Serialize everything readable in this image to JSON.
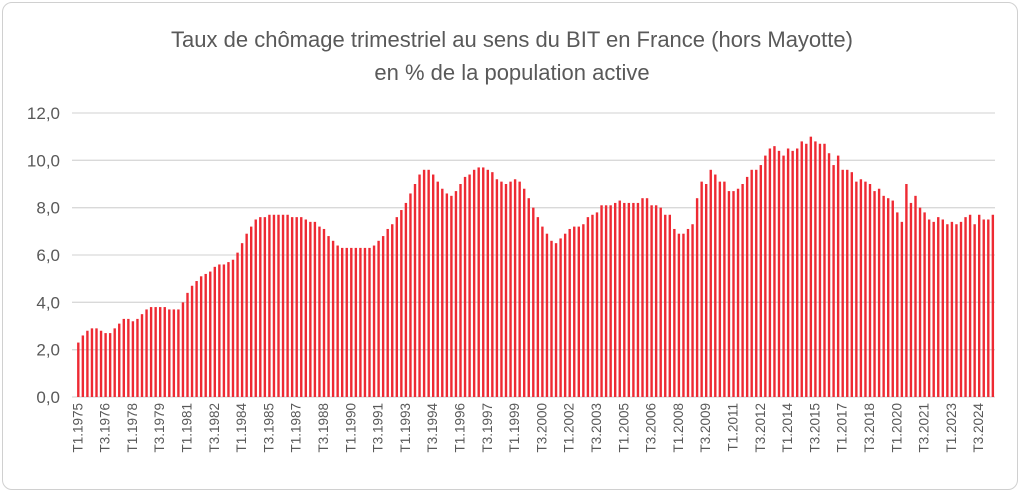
{
  "chart_data": {
    "type": "bar",
    "title": "Taux de chômage trimestriel au sens du BIT en France (hors Mayotte)",
    "subtitle": "en % de la population active",
    "xlabel": "",
    "ylabel": "",
    "ylim": [
      0,
      12
    ],
    "grid": true,
    "y_tick_labels": [
      "0,0",
      "2,0",
      "4,0",
      "6,0",
      "8,0",
      "10,0",
      "12,0"
    ],
    "x_tick_labels": [
      "T1.1975",
      "T3.1976",
      "T1.1978",
      "T3.1979",
      "T1.1981",
      "T3.1982",
      "T1.1984",
      "T3.1985",
      "T1.1987",
      "T3.1988",
      "T1.1990",
      "T3.1991",
      "T1.1993",
      "T3.1994",
      "T1.1996",
      "T3.1997",
      "T1.1999",
      "T3.2000",
      "T1.2002",
      "T3.2003",
      "T1.2005",
      "T3.2006",
      "T1.2008",
      "T3.2009",
      "T1.2011",
      "T3.2012",
      "T1.2014",
      "T3.2015",
      "T1.2017",
      "T3.2018",
      "T1.2020",
      "T3.2021",
      "T1.2023",
      "T3.2024"
    ],
    "bar_color": "#ee2a33",
    "values": [
      2.3,
      2.6,
      2.8,
      2.9,
      2.9,
      2.8,
      2.7,
      2.7,
      2.9,
      3.1,
      3.3,
      3.3,
      3.2,
      3.3,
      3.5,
      3.7,
      3.8,
      3.8,
      3.8,
      3.8,
      3.7,
      3.7,
      3.7,
      4.0,
      4.4,
      4.7,
      4.9,
      5.1,
      5.2,
      5.3,
      5.5,
      5.6,
      5.6,
      5.7,
      5.8,
      6.1,
      6.5,
      6.9,
      7.2,
      7.5,
      7.6,
      7.6,
      7.7,
      7.7,
      7.7,
      7.7,
      7.7,
      7.6,
      7.6,
      7.6,
      7.5,
      7.4,
      7.4,
      7.2,
      7.1,
      6.8,
      6.6,
      6.4,
      6.3,
      6.3,
      6.3,
      6.3,
      6.3,
      6.3,
      6.3,
      6.4,
      6.6,
      6.8,
      7.1,
      7.3,
      7.6,
      7.9,
      8.2,
      8.6,
      9.0,
      9.4,
      9.6,
      9.6,
      9.4,
      9.1,
      8.8,
      8.6,
      8.5,
      8.7,
      9.0,
      9.3,
      9.4,
      9.6,
      9.7,
      9.7,
      9.6,
      9.5,
      9.2,
      9.1,
      9.0,
      9.1,
      9.2,
      9.1,
      8.8,
      8.4,
      8.0,
      7.6,
      7.2,
      6.9,
      6.6,
      6.5,
      6.7,
      6.9,
      7.1,
      7.2,
      7.2,
      7.3,
      7.6,
      7.7,
      7.8,
      8.1,
      8.1,
      8.1,
      8.2,
      8.3,
      8.2,
      8.2,
      8.2,
      8.2,
      8.4,
      8.4,
      8.1,
      8.1,
      8.0,
      7.7,
      7.7,
      7.1,
      6.9,
      6.9,
      7.1,
      7.3,
      8.4,
      9.1,
      9.0,
      9.6,
      9.4,
      9.1,
      9.1,
      8.7,
      8.7,
      8.8,
      9.0,
      9.3,
      9.6,
      9.6,
      9.8,
      10.2,
      10.5,
      10.6,
      10.4,
      10.2,
      10.5,
      10.4,
      10.5,
      10.8,
      10.7,
      11.0,
      10.8,
      10.7,
      10.7,
      10.3,
      9.8,
      10.2,
      9.6,
      9.6,
      9.5,
      9.1,
      9.2,
      9.1,
      9.0,
      8.7,
      8.8,
      8.5,
      8.4,
      8.3,
      7.8,
      7.4,
      9.0,
      8.2,
      8.5,
      8.0,
      7.8,
      7.5,
      7.4,
      7.6,
      7.5,
      7.3,
      7.4,
      7.3,
      7.4,
      7.6,
      7.7,
      7.3,
      7.7,
      7.5,
      7.5,
      7.7
    ]
  }
}
